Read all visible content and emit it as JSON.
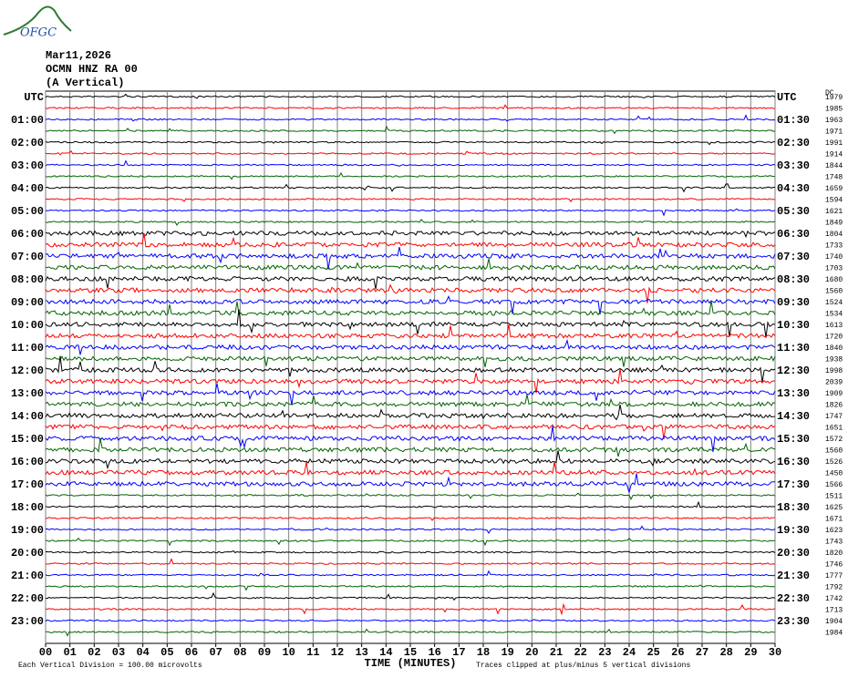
{
  "logo": "OFGC",
  "chart_data": {
    "type": "helicorder",
    "title_lines": [
      "Mar11,2026",
      "OCMN HNZ RA 00",
      "(A Vertical)"
    ],
    "xlabel": "TIME (MINUTES)",
    "footnote_left": "Each Vertical Division =  100.00 microvolts",
    "footnote_right": "Traces clipped at plus/minus 5 vertical divisions",
    "xlim": [
      0,
      30
    ],
    "xticks": [
      {
        "value": 0,
        "label": "00"
      },
      {
        "value": 1,
        "label": "01"
      },
      {
        "value": 2,
        "label": "02"
      },
      {
        "value": 3,
        "label": "03"
      },
      {
        "value": 4,
        "label": "04"
      },
      {
        "value": 5,
        "label": "05"
      },
      {
        "value": 6,
        "label": "06"
      },
      {
        "value": 7,
        "label": "07"
      },
      {
        "value": 8,
        "label": "08"
      },
      {
        "value": 9,
        "label": "09"
      },
      10,
      11,
      12,
      13,
      14,
      15,
      16,
      17,
      18,
      19,
      20,
      21,
      22,
      23,
      24,
      25,
      26,
      27,
      28,
      29,
      30
    ],
    "left_labels": [
      "UTC",
      "01:00",
      "02:00",
      "03:00",
      "04:00",
      "05:00",
      "06:00",
      "07:00",
      "08:00",
      "09:00",
      "10:00",
      "11:00",
      "12:00",
      "13:00",
      "14:00",
      "15:00",
      "16:00",
      "17:00",
      "18:00",
      "19:00",
      "20:00",
      "21:00",
      "22:00",
      "23:00"
    ],
    "right_labels": [
      "UTC",
      "01:30",
      "02:30",
      "03:30",
      "04:30",
      "05:30",
      "06:30",
      "07:30",
      "08:30",
      "09:30",
      "10:30",
      "11:30",
      "12:30",
      "13:30",
      "14:30",
      "15:30",
      "16:30",
      "17:30",
      "18:30",
      "19:30",
      "20:30",
      "21:30",
      "22:30",
      "23:30"
    ],
    "dc_header": "DC",
    "dc": [
      1979,
      1985,
      1963,
      1971,
      1991,
      1914,
      1844,
      1748,
      1659,
      1594,
      1621,
      1849,
      1804,
      1733,
      1740,
      1703,
      1680,
      1560,
      1524,
      1534,
      1613,
      1720,
      1840,
      1938,
      1998,
      2039,
      1909,
      1826,
      1747,
      1651,
      1572,
      1560,
      1526,
      1450,
      1566,
      1511,
      1625,
      1671,
      1623,
      1743,
      1820,
      1746,
      1777,
      1792,
      1742,
      1713,
      1904,
      1984
    ],
    "trace_colors": [
      "#000000",
      "#ff0000",
      "#0000ff",
      "#006400"
    ],
    "grid": true
  }
}
